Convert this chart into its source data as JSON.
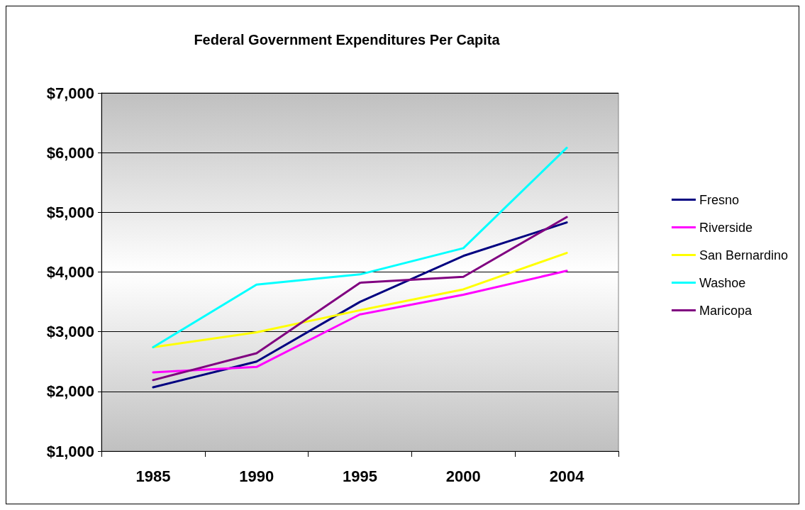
{
  "chart_data": {
    "type": "line",
    "title": "Federal Government Expenditures Per Capita",
    "categories": [
      "1985",
      "1990",
      "1995",
      "2000",
      "2004"
    ],
    "series": [
      {
        "name": "Fresno",
        "color": "#000080",
        "values": [
          2070,
          2500,
          3500,
          4270,
          4830
        ]
      },
      {
        "name": "Riverside",
        "color": "#ff00ff",
        "values": [
          2320,
          2410,
          3290,
          3620,
          4020
        ]
      },
      {
        "name": "San Bernardino",
        "color": "#ffff00",
        "values": [
          2740,
          2990,
          3360,
          3710,
          4320
        ]
      },
      {
        "name": "Washoe",
        "color": "#00ffff",
        "values": [
          2740,
          3790,
          3960,
          4400,
          6080
        ]
      },
      {
        "name": "Maricopa",
        "color": "#800080",
        "values": [
          2190,
          2640,
          3820,
          3920,
          4920
        ]
      }
    ],
    "ylim": [
      1000,
      7000
    ],
    "yticks": [
      {
        "value": 1000,
        "label": "$1,000"
      },
      {
        "value": 2000,
        "label": "$2,000"
      },
      {
        "value": 3000,
        "label": "$3,000"
      },
      {
        "value": 4000,
        "label": "$4,000"
      },
      {
        "value": 5000,
        "label": "$5,000"
      },
      {
        "value": 6000,
        "label": "$6,000"
      },
      {
        "value": 7000,
        "label": "$7,000"
      }
    ],
    "grid": "y",
    "legend": "right",
    "marker": "none",
    "line_style": "solid"
  }
}
